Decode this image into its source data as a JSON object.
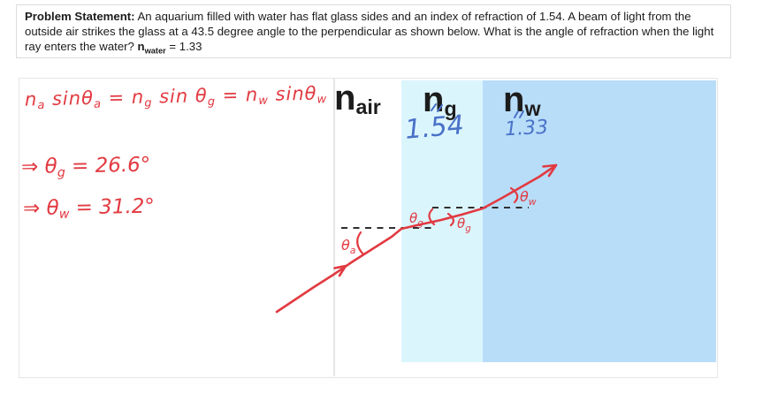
{
  "problem": {
    "label": "Problem Statement:",
    "body": "  An aquarium filled with water has flat glass sides and an index of refraction of 1.54.  A beam of light from the outside air strikes the glass at a 43.5 degree angle to the perpendicular as shown below.  What is the angle of refraction when the light ray enters the water?  ",
    "n_base": "n",
    "n_sub": "water",
    "n_eq": " = 1.33"
  },
  "solution": {
    "equation": "n_a sinθ_a = n_g sin θ_g = n_w sinθ_w",
    "step_glass": "⇒ θ_g = 26.6°",
    "step_water": "⇒ θ_w = 31.2°"
  },
  "diagram": {
    "labels": {
      "air": "n_air",
      "glass": "n_g",
      "water": "n_w"
    },
    "indices": {
      "glass": "1.54",
      "water": "1.33"
    },
    "angles": {
      "air": "θ_a",
      "glass_entry": "θ_g",
      "glass_exit": "θ_g",
      "water": "θ_w"
    },
    "colors": {
      "glass_region": "#dbf5fd",
      "water_region": "#b8ddf9",
      "ink_red": "#e23a41",
      "ink_blue": "#4a72c8"
    }
  }
}
